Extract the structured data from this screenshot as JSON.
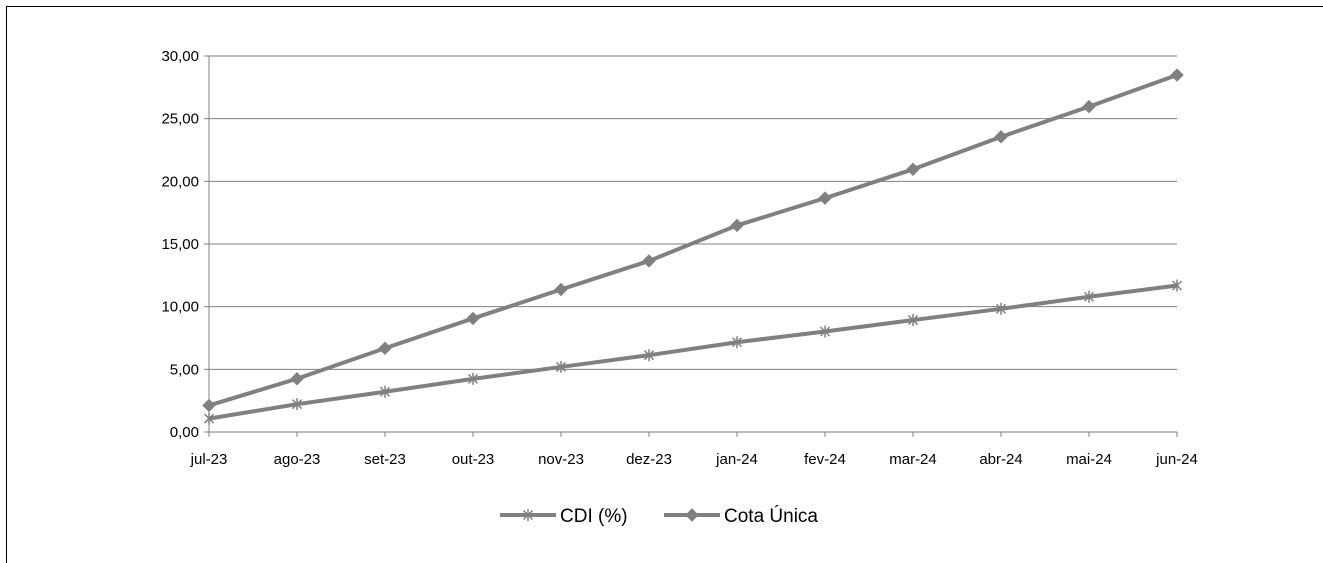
{
  "chart_data": {
    "type": "line",
    "categories": [
      "jul-23",
      "ago-23",
      "set-23",
      "out-23",
      "nov-23",
      "dez-23",
      "jan-24",
      "fev-24",
      "mar-24",
      "abr-24",
      "mai-24",
      "jun-24"
    ],
    "series": [
      {
        "name": "CDI (%)",
        "marker": "asterisk",
        "values": [
          1.07,
          2.22,
          3.21,
          4.24,
          5.19,
          6.13,
          7.16,
          8.02,
          8.93,
          9.83,
          10.79,
          11.69
        ]
      },
      {
        "name": "Cota Única",
        "marker": "diamond",
        "values": [
          2.12,
          4.25,
          6.68,
          9.06,
          11.37,
          13.65,
          16.48,
          18.66,
          20.96,
          23.55,
          25.96,
          28.48
        ]
      }
    ],
    "ylim": [
      0,
      30
    ],
    "y_ticks": [
      "0,00",
      "5,00",
      "10,00",
      "15,00",
      "20,00",
      "25,00",
      "30,00"
    ],
    "grid": true,
    "legend_position": "bottom",
    "colors": {
      "series_line": "#808080",
      "grid": "#808080",
      "axis": "#808080"
    }
  }
}
